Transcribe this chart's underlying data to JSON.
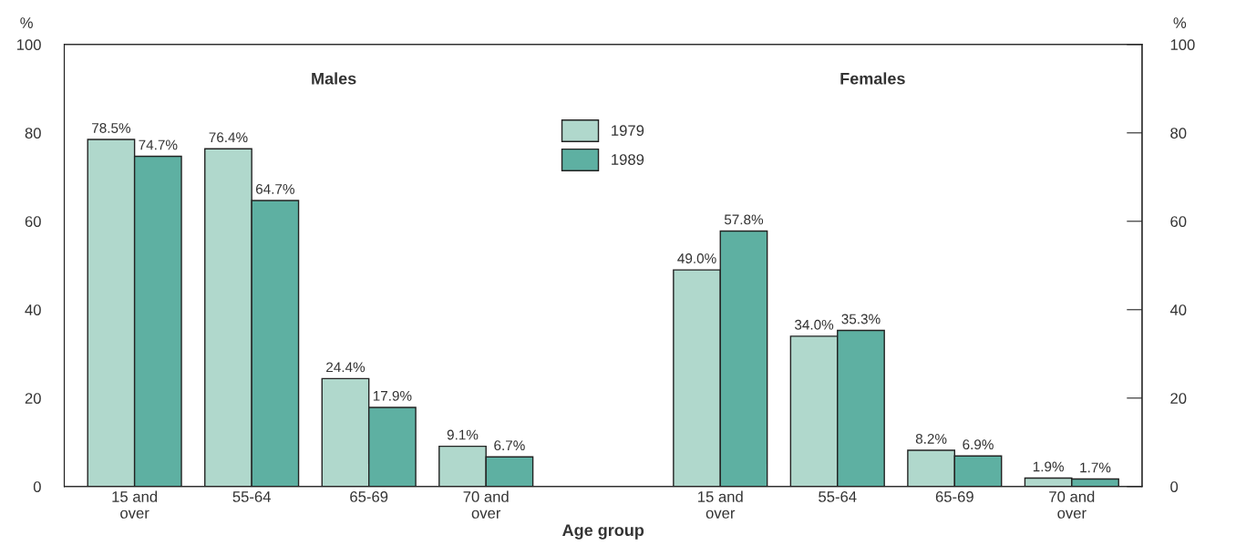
{
  "chart_data": {
    "type": "bar",
    "categories": [
      "15 and\nover",
      "55-64",
      "65-69",
      "70 and\nover",
      null,
      "15 and\nover",
      "55-64",
      "65-69",
      "70 and\nover"
    ],
    "series": [
      {
        "name": "1979",
        "color": "#b0d8cc",
        "values": [
          78.5,
          76.4,
          24.4,
          9.1,
          null,
          49.0,
          34.0,
          8.2,
          1.9
        ],
        "value_labels": [
          "78.5%",
          "76.4%",
          "24.4%",
          "9.1%",
          null,
          "49.0%",
          "34.0%",
          "8.2%",
          "1.9%"
        ]
      },
      {
        "name": "1989",
        "color": "#5eb0a2",
        "values": [
          74.7,
          64.7,
          17.9,
          6.7,
          null,
          57.8,
          35.3,
          6.9,
          1.7
        ],
        "value_labels": [
          "74.7%",
          "64.7%",
          "17.9%",
          "6.7%",
          null,
          "57.8%",
          "35.3%",
          "6.9%",
          "1.7%"
        ]
      }
    ],
    "xlabel": "Age group",
    "ylabel": "%",
    "y2label": "%",
    "ylim": [
      0,
      100
    ],
    "yticks": [
      0,
      20,
      40,
      60,
      80,
      100
    ],
    "y2lim": [
      0,
      100
    ],
    "y2ticks": [
      0,
      20,
      40,
      60,
      80,
      100
    ],
    "annotations": [
      "Males",
      "Females"
    ],
    "legend": "top",
    "grid": false
  }
}
